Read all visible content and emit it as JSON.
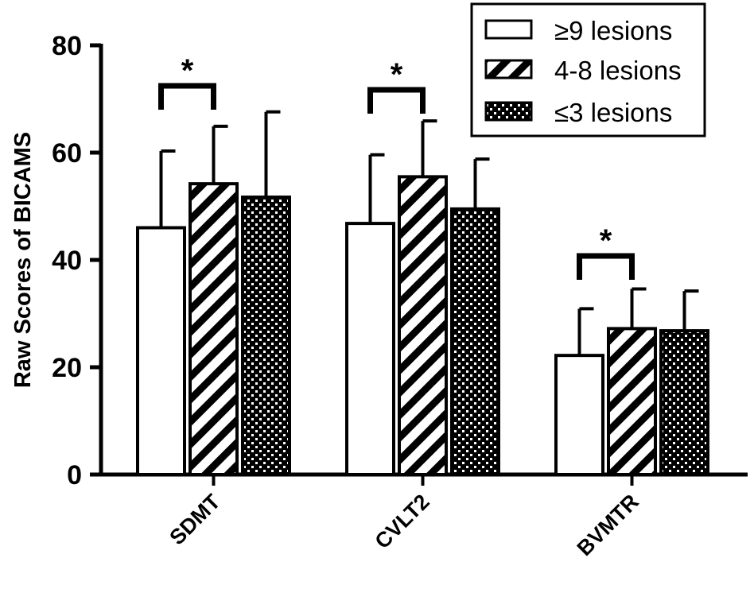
{
  "chart_data": {
    "type": "bar",
    "title": "",
    "xlabel": "",
    "ylabel": "Raw Scores of BICAMS",
    "ylim": [
      0,
      80
    ],
    "yticks": [
      "0",
      "20",
      "40",
      "60",
      "80"
    ],
    "categories": [
      "SDMT",
      "CVLT2",
      "BVMTR"
    ],
    "series": [
      {
        "name": "≥9 lesions",
        "values": [
          46,
          46.8,
          22.2
        ],
        "errors": [
          14.3,
          12.8,
          8.7
        ],
        "pattern": "open",
        "color": "#ffffff"
      },
      {
        "name": "4-8 lesions",
        "values": [
          54.2,
          55.5,
          27.2
        ],
        "errors": [
          10.7,
          10.4,
          7.4
        ],
        "pattern": "diagonal-stripes",
        "color": "#000000"
      },
      {
        "name": "≤3 lesions",
        "values": [
          51.7,
          49.5,
          26.8
        ],
        "errors": [
          15.9,
          9.3,
          7.4
        ],
        "pattern": "brick-dots",
        "color": "#000000"
      }
    ],
    "significance": [
      {
        "category": "SDMT",
        "between": [
          "≥9 lesions",
          "4-8 lesions"
        ],
        "label": "*"
      },
      {
        "category": "CVLT2",
        "between": [
          "≥9 lesions",
          "4-8 lesions"
        ],
        "label": "*"
      },
      {
        "category": "BVMTR",
        "between": [
          "≥9 lesions",
          "4-8 lesions"
        ],
        "label": "*"
      }
    ],
    "legend_position": "top-right",
    "grid": false
  }
}
